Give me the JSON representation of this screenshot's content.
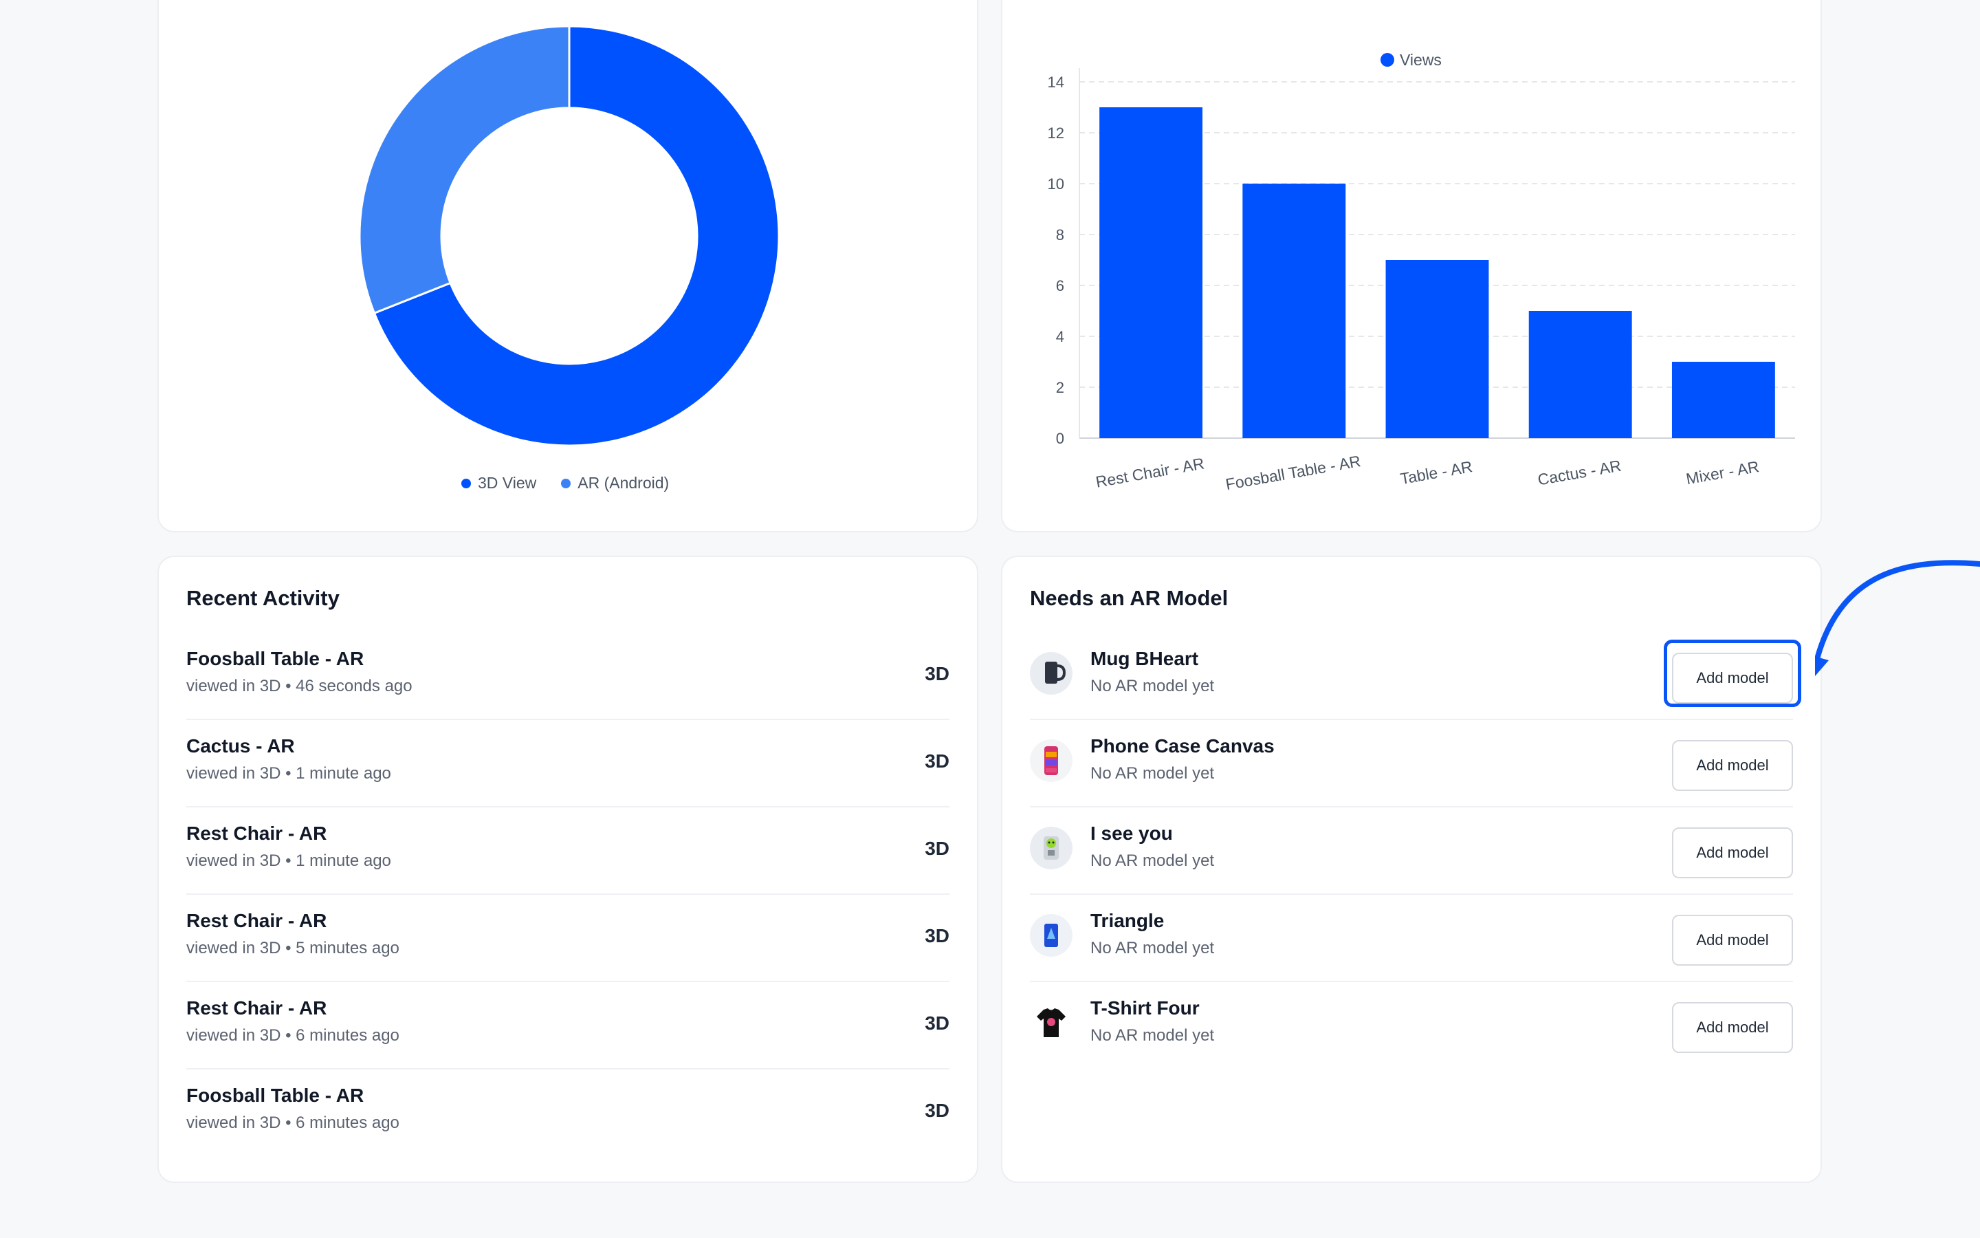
{
  "colors": {
    "primary": "#0052ff",
    "secondary": "#3b82f6",
    "accent_arrow": "#0a55f5"
  },
  "donut": {
    "legend": [
      {
        "label": "3D View",
        "color": "#0052ff"
      },
      {
        "label": "AR (Android)",
        "color": "#3b82f6"
      }
    ]
  },
  "chart_data": [
    {
      "type": "pie",
      "variant": "donut",
      "labels": [
        "3D View",
        "AR (Android)"
      ],
      "values": [
        69,
        31
      ],
      "colors": [
        "#0052ff",
        "#3b82f6"
      ],
      "legend_position": "bottom"
    },
    {
      "type": "bar",
      "categories": [
        "Rest Chair - AR",
        "Foosball Table - AR",
        "Table - AR",
        "Cactus - AR",
        "Mixer - AR"
      ],
      "series": [
        {
          "name": "Views",
          "values": [
            13,
            10,
            7,
            5,
            3
          ],
          "color": "#0052ff"
        }
      ],
      "ylim": [
        0,
        14
      ],
      "yticks": [
        "0",
        "2",
        "4",
        "6",
        "8",
        "10",
        "12",
        "14"
      ],
      "grid": true,
      "legend_position": "top"
    }
  ],
  "recent_activity": {
    "title": "Recent Activity",
    "items": [
      {
        "title": "Foosball Table - AR",
        "subtitle": "viewed in 3D • 46 seconds ago",
        "badge": "3D"
      },
      {
        "title": "Cactus - AR",
        "subtitle": "viewed in 3D • 1 minute ago",
        "badge": "3D"
      },
      {
        "title": "Rest Chair - AR",
        "subtitle": "viewed in 3D • 1 minute ago",
        "badge": "3D"
      },
      {
        "title": "Rest Chair - AR",
        "subtitle": "viewed in 3D • 5 minutes ago",
        "badge": "3D"
      },
      {
        "title": "Rest Chair - AR",
        "subtitle": "viewed in 3D • 6 minutes ago",
        "badge": "3D"
      },
      {
        "title": "Foosball Table - AR",
        "subtitle": "viewed in 3D • 6 minutes ago",
        "badge": "3D"
      }
    ]
  },
  "needs_ar": {
    "title": "Needs an AR Model",
    "button_label": "Add model",
    "items": [
      {
        "title": "Mug BHeart",
        "subtitle": "No AR model yet",
        "thumb_icon": "mug-thumbnail"
      },
      {
        "title": "Phone Case Canvas",
        "subtitle": "No AR model yet",
        "thumb_icon": "phone-case-thumbnail"
      },
      {
        "title": "I see you",
        "subtitle": "No AR model yet",
        "thumb_icon": "mug-face-thumbnail"
      },
      {
        "title": "Triangle",
        "subtitle": "No AR model yet",
        "thumb_icon": "triangle-thumbnail"
      },
      {
        "title": "T-Shirt Four",
        "subtitle": "No AR model yet",
        "thumb_icon": "tshirt-thumbnail"
      }
    ]
  }
}
